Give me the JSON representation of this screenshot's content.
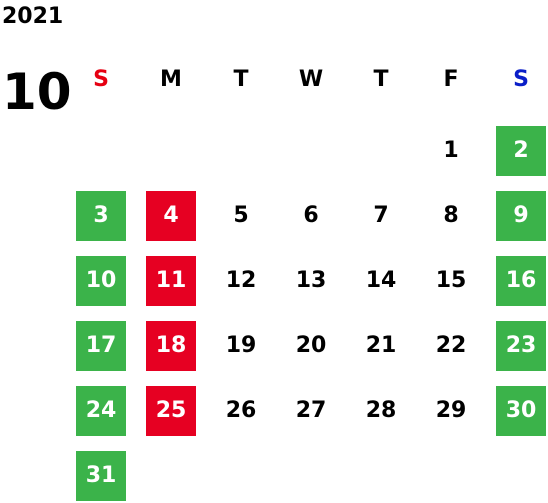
{
  "year": "2021",
  "month": "10",
  "weekdays": [
    {
      "label": "S",
      "color": "#e60012"
    },
    {
      "label": "M",
      "color": "#000000"
    },
    {
      "label": "T",
      "color": "#000000"
    },
    {
      "label": "W",
      "color": "#000000"
    },
    {
      "label": "T",
      "color": "#000000"
    },
    {
      "label": "F",
      "color": "#000000"
    },
    {
      "label": "S",
      "color": "#0a1ec8"
    }
  ],
  "weeks": [
    [
      null,
      null,
      null,
      null,
      null,
      {
        "day": 1
      },
      {
        "day": 2,
        "fill": "#3bb34a"
      }
    ],
    [
      {
        "day": 3,
        "fill": "#3bb34a"
      },
      {
        "day": 4,
        "fill": "#e60022"
      },
      {
        "day": 5
      },
      {
        "day": 6
      },
      {
        "day": 7
      },
      {
        "day": 8
      },
      {
        "day": 9,
        "fill": "#3bb34a"
      }
    ],
    [
      {
        "day": 10,
        "fill": "#3bb34a"
      },
      {
        "day": 11,
        "fill": "#e60022"
      },
      {
        "day": 12
      },
      {
        "day": 13
      },
      {
        "day": 14
      },
      {
        "day": 15
      },
      {
        "day": 16,
        "fill": "#3bb34a"
      }
    ],
    [
      {
        "day": 17,
        "fill": "#3bb34a"
      },
      {
        "day": 18,
        "fill": "#e60022"
      },
      {
        "day": 19
      },
      {
        "day": 20
      },
      {
        "day": 21
      },
      {
        "day": 22
      },
      {
        "day": 23,
        "fill": "#3bb34a"
      }
    ],
    [
      {
        "day": 24,
        "fill": "#3bb34a"
      },
      {
        "day": 25,
        "fill": "#e60022"
      },
      {
        "day": 26
      },
      {
        "day": 27
      },
      {
        "day": 28
      },
      {
        "day": 29
      },
      {
        "day": 30,
        "fill": "#3bb34a"
      }
    ],
    [
      {
        "day": 31,
        "fill": "#3bb34a"
      }
    ]
  ]
}
